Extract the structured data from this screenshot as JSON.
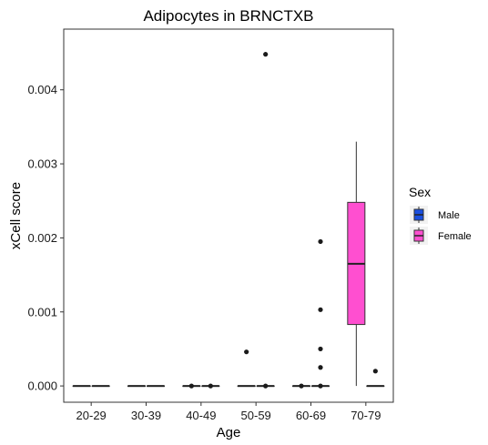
{
  "chart_data": {
    "type": "boxplot",
    "title": "Adipocytes in BRNCTXB",
    "xlabel": "Age",
    "ylabel": "xCell score",
    "categories": [
      "20-29",
      "30-39",
      "40-49",
      "50-59",
      "60-69",
      "70-79"
    ],
    "ylim": [
      -0.00022,
      0.00482
    ],
    "yticks": [
      0.0,
      0.001,
      0.002,
      0.003,
      0.004
    ],
    "ytick_labels": [
      "0.000",
      "0.001",
      "0.002",
      "0.003",
      "0.004"
    ],
    "grid": false,
    "legend": {
      "title": "Sex",
      "position": "right",
      "entries": [
        {
          "name": "Male",
          "color": "#1a4fe0"
        },
        {
          "name": "Female",
          "color": "#ff4fd0"
        }
      ]
    },
    "series": [
      {
        "name": "Male",
        "color": "#1a4fe0",
        "boxes": [
          {
            "category": "20-29",
            "min": 0,
            "q1": 0,
            "median": 0,
            "q3": 0,
            "max": 0,
            "outliers": []
          },
          {
            "category": "30-39",
            "min": 0,
            "q1": 0,
            "median": 0,
            "q3": 0,
            "max": 0,
            "outliers": []
          },
          {
            "category": "40-49",
            "min": 0,
            "q1": 0,
            "median": 0,
            "q3": 0,
            "max": 0,
            "outliers": [
              0.0
            ]
          },
          {
            "category": "50-59",
            "min": 0,
            "q1": 0,
            "median": 0,
            "q3": 0,
            "max": 0,
            "outliers": [
              0.00046
            ]
          },
          {
            "category": "60-69",
            "min": 0,
            "q1": 0,
            "median": 0,
            "q3": 0,
            "max": 0,
            "outliers": [
              0.0
            ]
          }
        ]
      },
      {
        "name": "Female",
        "color": "#ff4fd0",
        "boxes": [
          {
            "category": "20-29",
            "min": 0,
            "q1": 0,
            "median": 0,
            "q3": 0,
            "max": 0,
            "outliers": []
          },
          {
            "category": "30-39",
            "min": 0,
            "q1": 0,
            "median": 0,
            "q3": 0,
            "max": 0,
            "outliers": []
          },
          {
            "category": "40-49",
            "min": 0,
            "q1": 0,
            "median": 0,
            "q3": 0,
            "max": 0,
            "outliers": [
              0.0
            ]
          },
          {
            "category": "50-59",
            "min": 0,
            "q1": 0,
            "median": 0,
            "q3": 0,
            "max": 0,
            "outliers": [
              0.00448,
              0.0
            ]
          },
          {
            "category": "60-69",
            "min": 0,
            "q1": 0,
            "median": 0,
            "q3": 0,
            "max": 0,
            "outliers": [
              0.00195,
              0.00103,
              0.0005,
              0.00025,
              0.0
            ]
          },
          {
            "category": "70-79",
            "min": 0,
            "q1": 0.00083,
            "median": 0.00165,
            "q3": 0.00248,
            "max": 0.0033,
            "outliers": []
          },
          {
            "category": "70-79",
            "min": 0,
            "q1": 0,
            "median": 0,
            "q3": 0,
            "max": 0,
            "outliers": [
              0.0002
            ],
            "slot": "right"
          }
        ]
      }
    ]
  }
}
